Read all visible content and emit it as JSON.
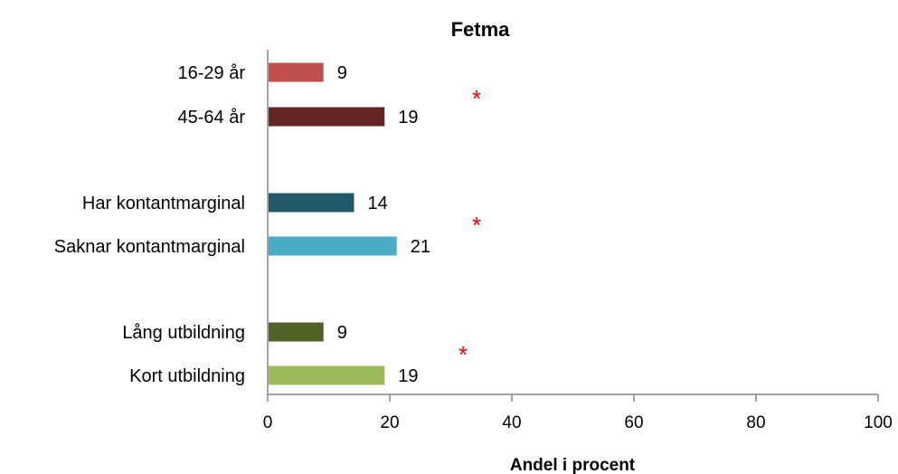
{
  "chart_data": {
    "type": "bar",
    "orientation": "horizontal",
    "title": "Fetma",
    "xlabel": "Andel i procent",
    "ylabel": "",
    "xlim": [
      0,
      100
    ],
    "x_ticks": [
      "0",
      "20",
      "40",
      "60",
      "80",
      "100"
    ],
    "grid": false,
    "legend": "none",
    "groups": [
      {
        "significance_marker": "*",
        "bars": [
          {
            "label": "16-29 år",
            "value": 9,
            "color": "#c0504d"
          },
          {
            "label": "45-64 år",
            "value": 19,
            "color": "#632523"
          }
        ]
      },
      {
        "significance_marker": "*",
        "bars": [
          {
            "label": "Har kontantmarginal",
            "value": 14,
            "color": "#215968"
          },
          {
            "label": "Saknar kontantmarginal",
            "value": 21,
            "color": "#4bacc6"
          }
        ]
      },
      {
        "significance_marker": "*",
        "bars": [
          {
            "label": "Lång utbildning",
            "value": 9,
            "color": "#4f6228"
          },
          {
            "label": "Kort utbildning",
            "value": 19,
            "color": "#9bbb59"
          }
        ]
      }
    ]
  }
}
